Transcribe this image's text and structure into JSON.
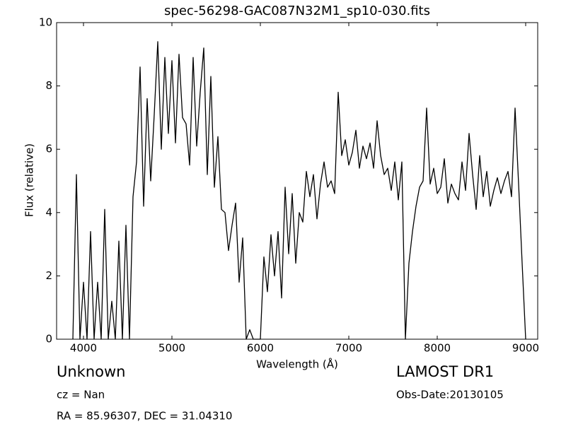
{
  "chart_data": {
    "type": "line",
    "title": "spec-56298-GAC087N32M1_sp10-030.fits",
    "x_label": "Wavelength (Å)",
    "y_label": "Flux (relative)",
    "annotations": [
      "Unknown",
      "cz = Nan",
      "RA = 85.96307, DEC = 31.04310",
      "LAMOST DR1",
      "Obs-Date:20130105"
    ],
    "x": [
      3880,
      3920,
      3960,
      4000,
      4040,
      4080,
      4120,
      4160,
      4200,
      4240,
      4280,
      4320,
      4360,
      4400,
      4440,
      4480,
      4520,
      4560,
      4600,
      4640,
      4680,
      4720,
      4760,
      4800,
      4840,
      4880,
      4920,
      4960,
      5000,
      5040,
      5080,
      5120,
      5160,
      5200,
      5240,
      5280,
      5320,
      5360,
      5400,
      5440,
      5480,
      5520,
      5560,
      5600,
      5640,
      5680,
      5720,
      5760,
      5800,
      5840,
      5880,
      5920,
      5960,
      6000,
      6040,
      6080,
      6120,
      6160,
      6200,
      6240,
      6280,
      6320,
      6360,
      6400,
      6440,
      6480,
      6520,
      6560,
      6600,
      6640,
      6680,
      6720,
      6760,
      6800,
      6840,
      6880,
      6920,
      6960,
      7000,
      7040,
      7080,
      7120,
      7160,
      7200,
      7240,
      7280,
      7320,
      7360,
      7400,
      7440,
      7480,
      7520,
      7560,
      7600,
      7640,
      7680,
      7720,
      7760,
      7800,
      7840,
      7880,
      7920,
      7960,
      8000,
      8040,
      8080,
      8120,
      8160,
      8200,
      8240,
      8280,
      8320,
      8360,
      8400,
      8440,
      8480,
      8520,
      8560,
      8600,
      8640,
      8680,
      8720,
      8760,
      8800,
      8840,
      8880,
      8920,
      8960,
      9000
    ],
    "series": [
      {
        "color": "#000000",
        "values": [
          0.0,
          5.2,
          0.0,
          1.8,
          0.0,
          3.4,
          0.0,
          1.8,
          0.0,
          4.1,
          0.0,
          1.2,
          0.0,
          3.1,
          0.0,
          3.6,
          0.0,
          4.5,
          5.6,
          8.6,
          4.2,
          7.6,
          5.0,
          7.1,
          9.4,
          6.0,
          8.9,
          6.5,
          8.8,
          6.2,
          9.0,
          7.0,
          6.8,
          5.5,
          8.9,
          6.1,
          7.8,
          9.2,
          5.2,
          8.3,
          4.8,
          6.4,
          4.1,
          4.0,
          2.8,
          3.6,
          4.3,
          1.8,
          3.2,
          0.0,
          0.3,
          0.0,
          0.0,
          0.0,
          2.6,
          1.5,
          3.3,
          2.0,
          3.4,
          1.3,
          4.8,
          2.7,
          4.6,
          2.4,
          4.0,
          3.7,
          5.3,
          4.5,
          5.2,
          3.8,
          4.9,
          5.6,
          4.8,
          5.0,
          4.6,
          7.8,
          5.8,
          6.3,
          5.5,
          5.9,
          6.6,
          5.4,
          6.1,
          5.7,
          6.2,
          5.4,
          6.9,
          5.8,
          5.2,
          5.4,
          4.7,
          5.6,
          4.4,
          5.6,
          0.0,
          2.4,
          3.4,
          4.2,
          4.8,
          5.0,
          7.3,
          4.9,
          5.4,
          4.6,
          4.8,
          5.7,
          4.3,
          4.9,
          4.6,
          4.4,
          5.6,
          4.7,
          6.5,
          5.2,
          4.1,
          5.8,
          4.5,
          5.3,
          4.2,
          4.7,
          5.1,
          4.6,
          5.0,
          5.3,
          4.5,
          7.3,
          4.9,
          2.4,
          0.0
        ]
      }
    ],
    "xlim": [
      3696,
      9136
    ],
    "ylim": [
      0,
      10
    ],
    "xticks": [
      4000,
      5000,
      6000,
      7000,
      8000,
      9000
    ],
    "yticks": [
      0,
      2,
      4,
      6,
      8,
      10
    ]
  }
}
